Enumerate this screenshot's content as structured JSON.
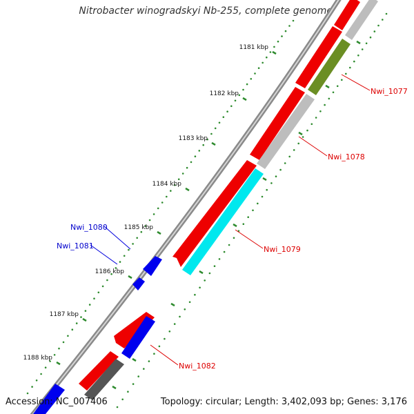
{
  "header": {
    "title": "Nitrobacter winogradskyi Nb-255, complete genome"
  },
  "footer": {
    "accession_label": "Accession:",
    "accession_value": "NC_007406",
    "topology_text": "Topology: circular; Length: 3,402,093 bp; Genes: 3,176"
  },
  "ticks": [
    {
      "label": "1181 kbp"
    },
    {
      "label": "1182 kbp"
    },
    {
      "label": "1183 kbp"
    },
    {
      "label": "1184 kbp"
    },
    {
      "label": "1185 kbp"
    },
    {
      "label": "1186 kbp"
    },
    {
      "label": "1187 kbp"
    },
    {
      "label": "1188 kbp"
    }
  ],
  "genes": [
    {
      "name": "Nwi_1077",
      "color": "#cc0000"
    },
    {
      "name": "Nwi_1078",
      "color": "#cc0000"
    },
    {
      "name": "Nwi_1079",
      "color": "#cc0000"
    },
    {
      "name": "Nwi_1080",
      "color": "#0000cc"
    },
    {
      "name": "Nwi_1081",
      "color": "#0000cc"
    },
    {
      "name": "Nwi_1082",
      "color": "#cc0000"
    }
  ],
  "colors": {
    "forward_cds": "#ee0000",
    "reverse_cds": "#0000ee",
    "backbone": "#8c8c8c",
    "track_green": "#6b8e23",
    "track_cyan": "#00e5ee",
    "track_grey": "#bdbdbd",
    "track_dark": "#555555",
    "tick_green": "#2e8b2e"
  }
}
